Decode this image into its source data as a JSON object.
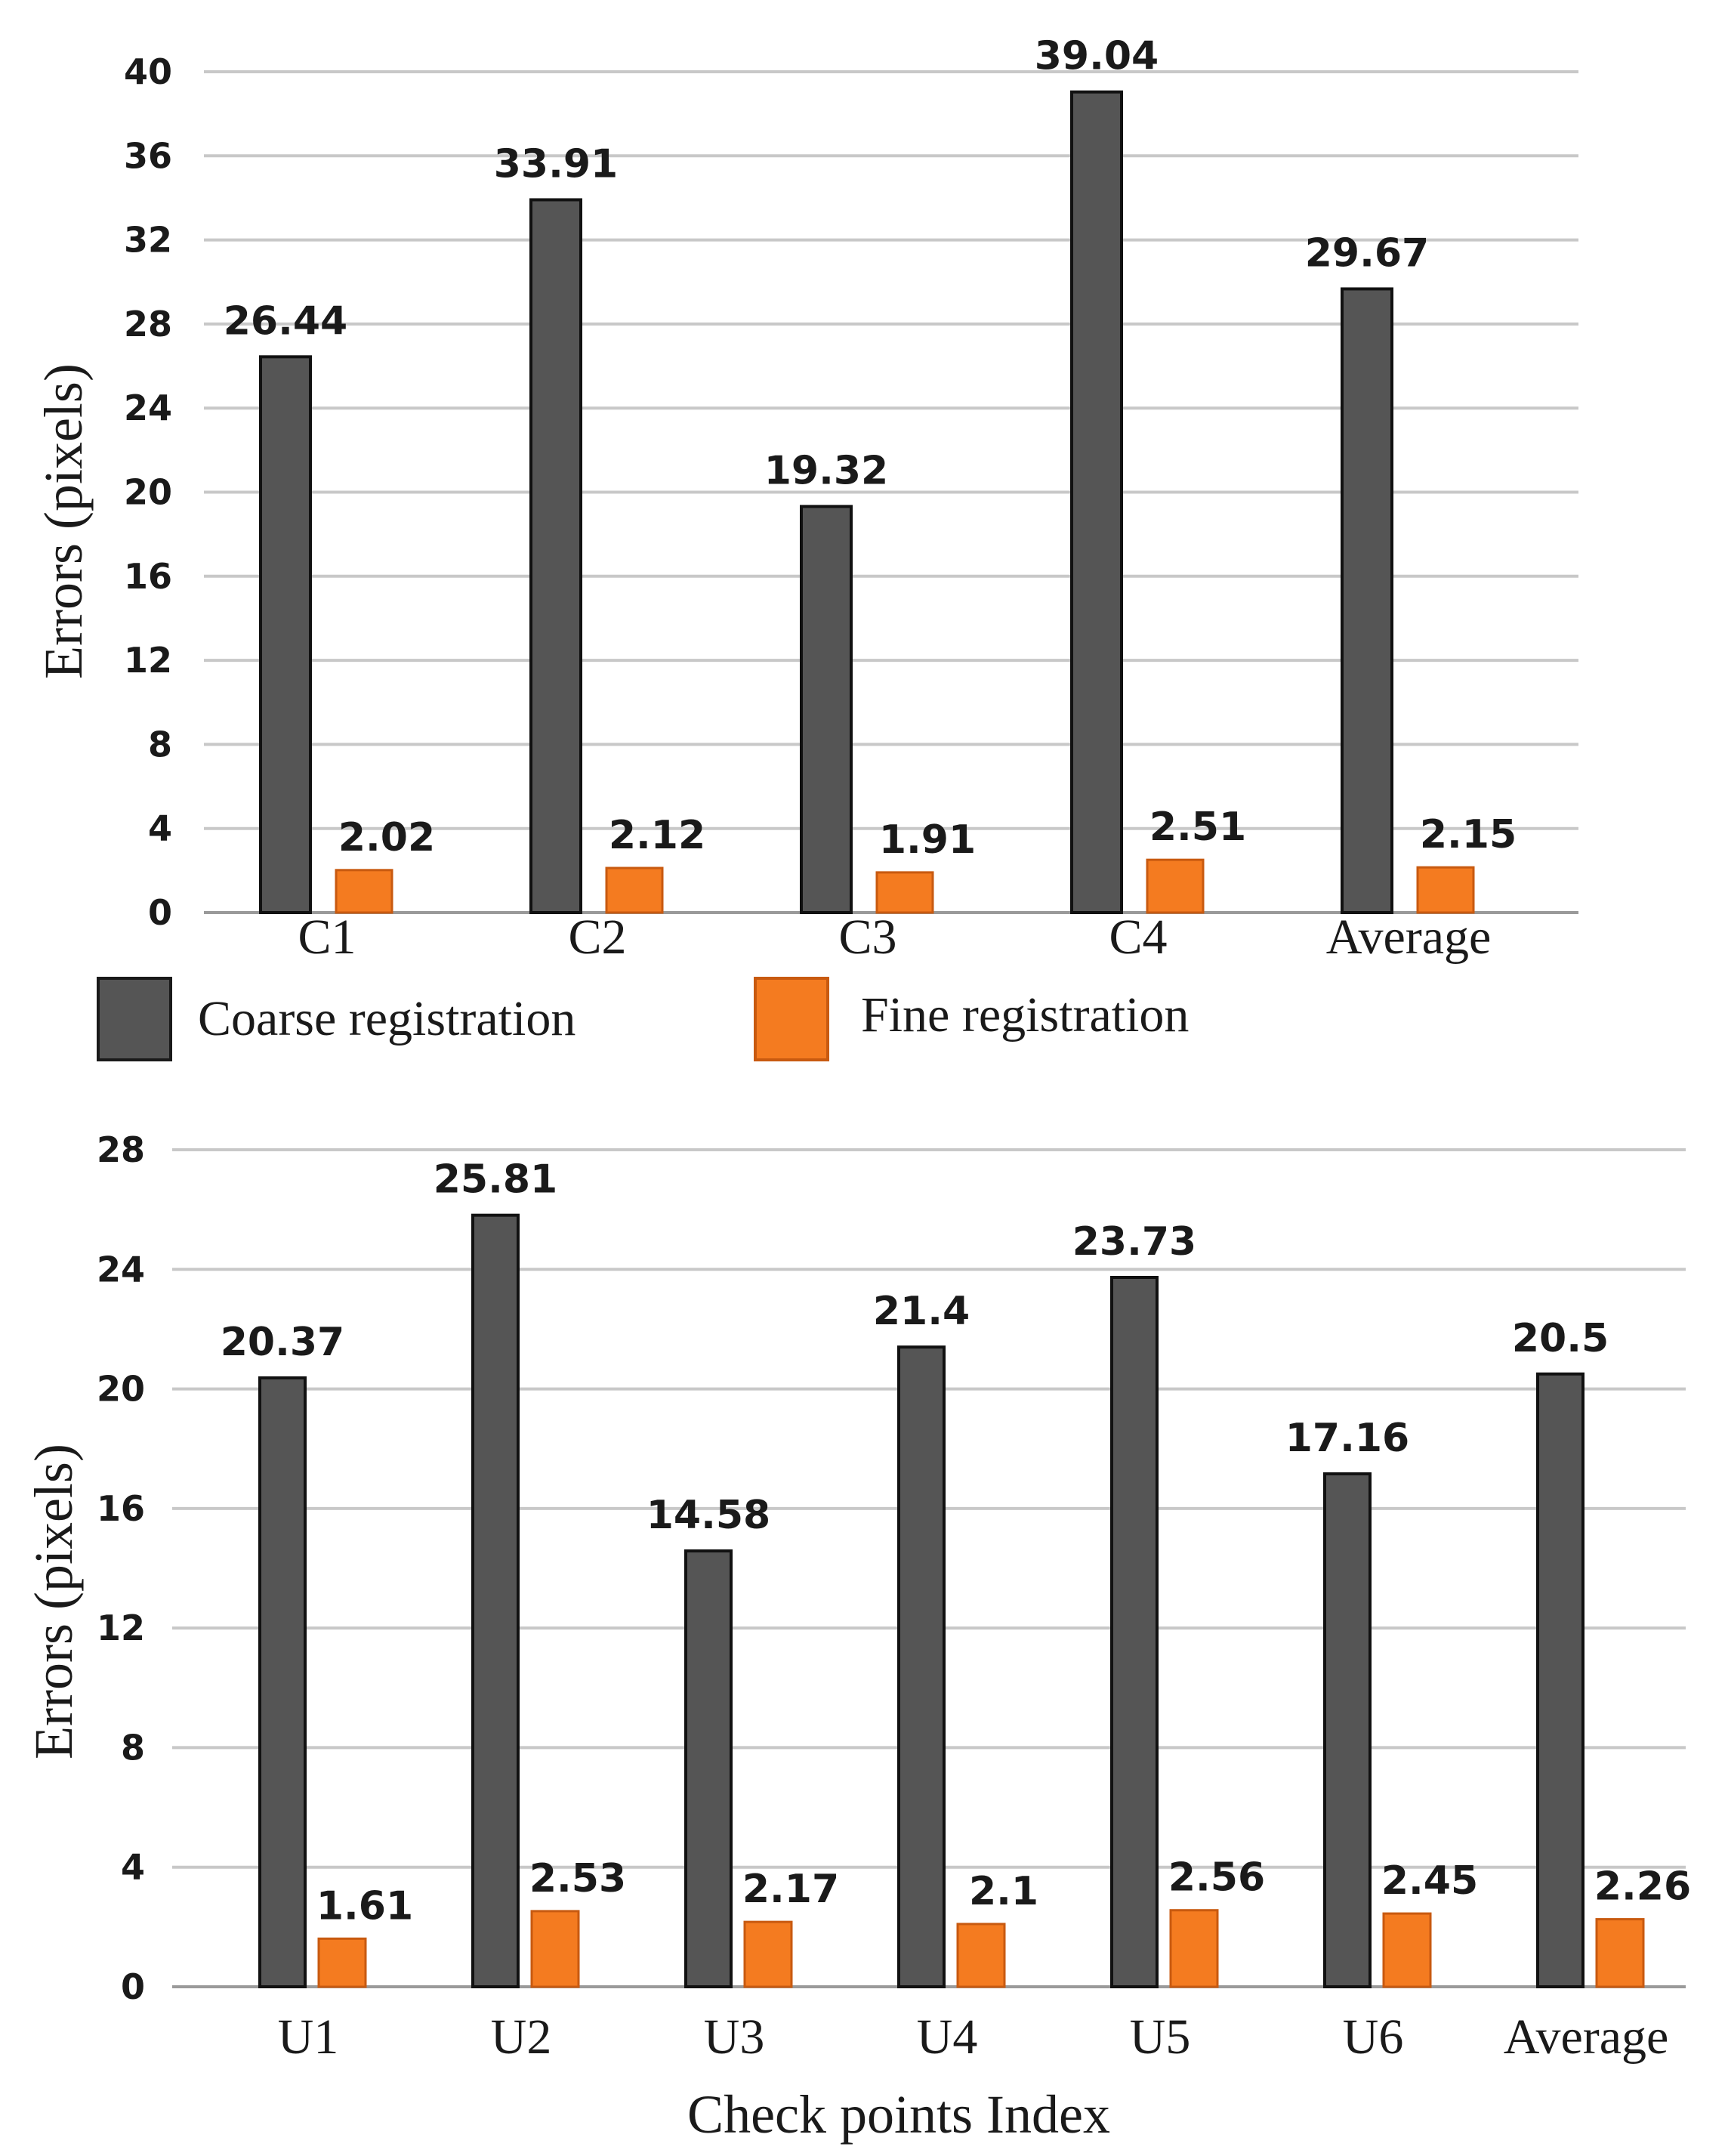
{
  "chart_data": [
    {
      "type": "bar",
      "id": "top",
      "ylabel": "Errors (pixels)",
      "xlabel": "",
      "ylim": [
        0,
        40
      ],
      "yticks": [
        0,
        4,
        8,
        12,
        16,
        20,
        24,
        28,
        32,
        36,
        40
      ],
      "categories": [
        "C1",
        "C2",
        "C3",
        "C4",
        "Average"
      ],
      "series": [
        {
          "name": "Coarse registration",
          "color": "#555555",
          "values": [
            26.44,
            33.91,
            19.32,
            39.04,
            29.67
          ]
        },
        {
          "name": "Fine registration",
          "color": "#F47B20",
          "values": [
            2.02,
            2.12,
            1.91,
            2.51,
            2.15
          ]
        }
      ],
      "legend": "bottom"
    },
    {
      "type": "bar",
      "id": "bottom",
      "ylabel": "Errors (pixels)",
      "xlabel": "Check points Index",
      "ylim": [
        0,
        28
      ],
      "yticks": [
        0,
        4,
        8,
        12,
        16,
        20,
        24,
        28
      ],
      "categories": [
        "U1",
        "U2",
        "U3",
        "U4",
        "U5",
        "U6",
        "Average"
      ],
      "series": [
        {
          "name": "Coarse registration",
          "color": "#555555",
          "values": [
            20.37,
            25.81,
            14.58,
            21.4,
            23.73,
            17.16,
            20.5
          ]
        },
        {
          "name": "Fine registration",
          "color": "#F47B20",
          "values": [
            1.61,
            2.53,
            2.17,
            2.1,
            2.56,
            2.45,
            2.26
          ]
        }
      ]
    }
  ],
  "legend": {
    "items": [
      {
        "label": "Coarse registration",
        "color": "#555555"
      },
      {
        "label": "Fine registration",
        "color": "#F47B20"
      }
    ]
  }
}
